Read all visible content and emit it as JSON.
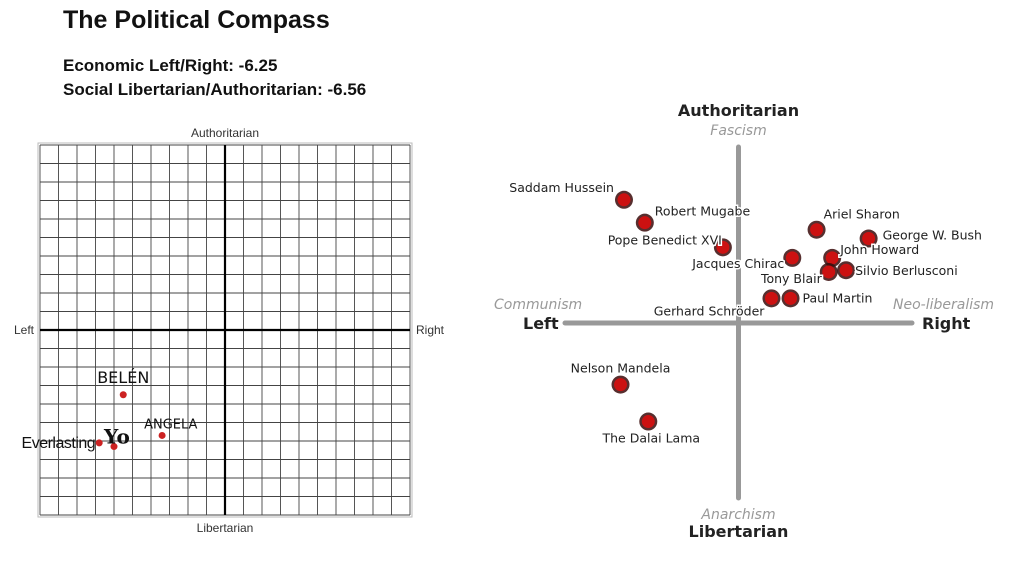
{
  "header": {
    "title": "The Political Compass",
    "economic_line": "Economic Left/Right: -6.25",
    "social_line": "Social Libertarian/Authoritarian: -6.56"
  },
  "chart_data": [
    {
      "type": "scatter",
      "title": "",
      "axis_labels": {
        "top": "Authoritarian",
        "bottom": "Libertarian",
        "left": "Left",
        "right": "Right"
      },
      "xlim": [
        -10,
        10
      ],
      "ylim": [
        -10,
        10
      ],
      "grid": true,
      "point_color": "#cc2222",
      "points": [
        {
          "label": "BELÉN",
          "x": -5.5,
          "y": -3.5
        },
        {
          "label": "ANGELA",
          "x": -3.4,
          "y": -5.7
        },
        {
          "label": "Yo",
          "x": -6.0,
          "y": -6.3
        },
        {
          "label": "Everlasting",
          "x": -6.8,
          "y": -6.1
        }
      ]
    },
    {
      "type": "scatter",
      "title": "",
      "axis_labels": {
        "top": "Authoritarian",
        "top_sub": "Fascism",
        "bottom": "Libertarian",
        "bottom_sub": "Anarchism",
        "left": "Left",
        "left_sub": "Communism",
        "right": "Right",
        "right_sub": "Neo-liberalism"
      },
      "xlim": [
        -10,
        10
      ],
      "ylim": [
        -10,
        10
      ],
      "grid": false,
      "point_color": "#cc1111",
      "points": [
        {
          "label": "Saddam Hussein",
          "x": -6.6,
          "y": 7.0
        },
        {
          "label": "Robert Mugabe",
          "x": -5.4,
          "y": 5.7
        },
        {
          "label": "Pope Benedict XVI",
          "x": -0.9,
          "y": 4.3
        },
        {
          "label": "Ariel Sharon",
          "x": 4.5,
          "y": 5.3
        },
        {
          "label": "George W. Bush",
          "x": 7.5,
          "y": 4.8
        },
        {
          "label": "John Howard",
          "x": 5.4,
          "y": 3.7
        },
        {
          "label": "Jacques Chirac",
          "x": 3.1,
          "y": 3.7
        },
        {
          "label": "Tony Blair",
          "x": 5.2,
          "y": 2.9
        },
        {
          "label": "Silvio Berlusconi",
          "x": 6.2,
          "y": 3.0
        },
        {
          "label": "Gerhard Schröder",
          "x": 1.9,
          "y": 1.4
        },
        {
          "label": "Paul Martin",
          "x": 3.0,
          "y": 1.4
        },
        {
          "label": "Nelson Mandela",
          "x": -6.8,
          "y": -3.5
        },
        {
          "label": "The Dalai Lama",
          "x": -5.2,
          "y": -5.6
        }
      ]
    }
  ]
}
